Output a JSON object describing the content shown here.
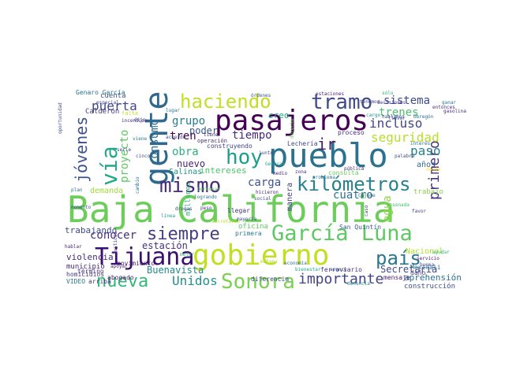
{
  "words": [
    {
      "text": "Baja California",
      "color": "#6ccd5a"
    },
    {
      "text": "pueblo",
      "color": "#2c728e"
    },
    {
      "text": "gobierno",
      "color": "#c2df23"
    },
    {
      "text": "pasajeros",
      "color": "#440154"
    },
    {
      "text": "gente",
      "color": "#31688e"
    },
    {
      "text": "García Luna",
      "color": "#5ec962"
    },
    {
      "text": "Tijuana",
      "color": "#3b0f70"
    },
    {
      "text": "Sonora",
      "color": "#7ad151"
    },
    {
      "text": "kilómetros",
      "color": "#26828e"
    },
    {
      "text": "vía",
      "color": "#22a884"
    },
    {
      "text": "mismo",
      "color": "#472c7a"
    },
    {
      "text": "hoy",
      "color": "#1f9e89"
    },
    {
      "text": "haciendo",
      "color": "#c0df25"
    },
    {
      "text": "tramo",
      "color": "#3e4a89"
    },
    {
      "text": "país",
      "color": "#2a788e"
    },
    {
      "text": "siempre",
      "color": "#433e85"
    },
    {
      "text": "jóvenes",
      "color": "#3b528b"
    },
    {
      "text": "nueva",
      "color": "#35b779"
    },
    {
      "text": "importante",
      "color": "#414487"
    },
    {
      "text": "primero",
      "color": "#46337e"
    },
    {
      "text": "Unidos",
      "color": "#21918c"
    },
    {
      "text": "incluso",
      "color": "#404688"
    },
    {
      "text": "seguridad",
      "color": "#b8de29"
    },
    {
      "text": "sistema",
      "color": "#3e4989"
    },
    {
      "text": "trenes",
      "color": "#4ac16d"
    },
    {
      "text": "paso",
      "color": "#26828e"
    },
    {
      "text": "puerta",
      "color": "#3f4788"
    },
    {
      "text": "consumo",
      "color": "#2e6e8e"
    },
    {
      "text": "tiempo",
      "color": "#482878"
    },
    {
      "text": "grupo",
      "color": "#287c8e"
    },
    {
      "text": "tren",
      "color": "#440154"
    },
    {
      "text": "obra",
      "color": "#2db27d"
    },
    {
      "text": "carga",
      "color": "#3b528b"
    },
    {
      "text": "cuatro",
      "color": "#2c728e"
    },
    {
      "text": "conocer",
      "color": "#46317e"
    },
    {
      "text": "nuevo",
      "color": "#482475"
    },
    {
      "text": "estación",
      "color": "#472f7d"
    },
    {
      "text": "Buenavista",
      "color": "#23898e"
    },
    {
      "text": "Secretaría",
      "color": "#3e4a89"
    },
    {
      "text": "ir",
      "color": "#481a6c"
    },
    {
      "text": "agua",
      "color": "#8fd744"
    },
    {
      "text": "años",
      "color": "#31688e"
    },
    {
      "text": "proyecto",
      "color": "#5ec962"
    },
    {
      "text": "trabajando",
      "color": "#3d4d8a"
    },
    {
      "text": "violencia",
      "color": "#472d7b"
    },
    {
      "text": "municipio",
      "color": "#472a7a"
    },
    {
      "text": "homicidios",
      "color": "#433d84"
    },
    {
      "text": "VIDEO",
      "color": "#2a788e"
    },
    {
      "text": "demanda",
      "color": "#a0da39"
    },
    {
      "text": "poder",
      "color": "#39568c"
    },
    {
      "text": "creo",
      "color": "#22a785"
    },
    {
      "text": "intereses",
      "color": "#4ec36b"
    },
    {
      "text": "Salinas",
      "color": "#1f948c"
    },
    {
      "text": "aprehensión",
      "color": "#2e6f8e"
    },
    {
      "text": "construcción",
      "color": "#3c508b"
    },
    {
      "text": "Nacional",
      "color": "#addc30"
    },
    {
      "text": "cuenta",
      "color": "#3b528b"
    },
    {
      "text": "Genaro García",
      "color": "#2c718e"
    },
    {
      "text": "Calderón",
      "color": "#433e85"
    },
    {
      "text": "construyendo",
      "color": "#414287"
    },
    {
      "text": "operación",
      "color": "#472c7a"
    },
    {
      "text": "Lechería",
      "color": "#3f4889"
    },
    {
      "text": "millones",
      "color": "#35b779"
    },
    {
      "text": "ferroviario",
      "color": "#453581"
    },
    {
      "text": "oficina",
      "color": "#5ec962"
    },
    {
      "text": "trabajo",
      "color": "#89d548"
    },
    {
      "text": "San Quintín",
      "color": "#38598c"
    },
    {
      "text": "Mexicali",
      "color": "#2c728e"
    },
    {
      "text": "mensaje",
      "color": "#481f70"
    },
    {
      "text": "daño",
      "color": "#443983"
    },
    {
      "text": "manera",
      "color": "#424186"
    },
    {
      "text": "diferencia",
      "color": "#3f4889"
    },
    {
      "text": "proceso",
      "color": "#46307e"
    },
    {
      "text": "abogado",
      "color": "#481b6d"
    },
    {
      "text": "movimiento",
      "color": "#482173"
    },
    {
      "text": "término",
      "color": "#472d7b"
    },
    {
      "text": "arriba",
      "color": "#443a83"
    },
    {
      "text": "llegar",
      "color": "#46327e"
    },
    {
      "text": "consulta",
      "color": "#6ece58"
    },
    {
      "text": "primera",
      "color": "#2a788e"
    },
    {
      "text": "momento",
      "color": "#39568c"
    },
    {
      "text": "falta",
      "color": "#bddf26"
    },
    {
      "text": "incendios",
      "color": "#472c7a"
    },
    {
      "text": "órdenes",
      "color": "#3b528b"
    },
    {
      "text": "General",
      "color": "#20a486"
    },
    {
      "text": "medio",
      "color": "#46327e"
    },
    {
      "text": "línea",
      "color": "#1f9e89"
    },
    {
      "text": "mayoría",
      "color": "#3d4e8a"
    },
    {
      "text": "peso",
      "color": "#443983"
    },
    {
      "text": "economía",
      "color": "#2e6e8e"
    },
    {
      "text": "bienestar",
      "color": "#22a884"
    },
    {
      "text": "apoyar",
      "color": "#482576"
    },
    {
      "text": "dijo",
      "color": "#3f4788"
    },
    {
      "text": "serie",
      "color": "#414487"
    },
    {
      "text": "cinco",
      "color": "#3e4a89"
    },
    {
      "text": "viene",
      "color": "#2a788e"
    },
    {
      "text": "drogas",
      "color": "#404588"
    },
    {
      "text": "acuerdo",
      "color": "#3f4889"
    },
    {
      "text": "social",
      "color": "#39568c"
    },
    {
      "text": "hicieron",
      "color": "#472c7a"
    },
    {
      "text": "avance",
      "color": "#3b528b"
    },
    {
      "text": "estaciones",
      "color": "#481f70"
    },
    {
      "text": "decisiones",
      "color": "#453781"
    },
    {
      "text": "sólo",
      "color": "#2db27d"
    },
    {
      "text": "palabra",
      "color": "#3e4989"
    },
    {
      "text": "Cajeme",
      "color": "#31688e"
    },
    {
      "text": "problema",
      "color": "#2a788e"
    },
    {
      "text": "pública",
      "color": "#472a7a"
    },
    {
      "text": "cargo",
      "color": "#1f948c"
    },
    {
      "text": "denuncia",
      "color": "#23898e"
    },
    {
      "text": "servicio",
      "color": "#481769"
    },
    {
      "text": "buena",
      "color": "#3e4989"
    },
    {
      "text": "hablamos",
      "color": "#3f4788"
    },
    {
      "text": "Obregón",
      "color": "#2e6e8e"
    },
    {
      "text": "mejor",
      "color": "#35b779"
    },
    {
      "text": "plan",
      "color": "#2c728e"
    },
    {
      "text": "gasolina",
      "color": "#472c7a"
    },
    {
      "text": "derecho",
      "color": "#6ece58"
    },
    {
      "text": "zona",
      "color": "#46337e"
    },
    {
      "text": "Ensenada",
      "color": "#4ac16d"
    },
    {
      "text": "favor",
      "color": "#433e85"
    },
    {
      "text": "llevar",
      "color": "#3b528b"
    },
    {
      "text": "mañana",
      "color": "#addc30"
    },
    {
      "text": "logrando",
      "color": "#2c728e"
    },
    {
      "text": "tiene",
      "color": "#433e85"
    },
    {
      "text": "lugar",
      "color": "#2a788e"
    },
    {
      "text": "junto",
      "color": "#3f4889"
    },
    {
      "text": "hablar",
      "color": "#481f70"
    },
    {
      "text": "Justicia",
      "color": "#46317e"
    },
    {
      "text": "especial",
      "color": "#404688"
    },
    {
      "text": "personas",
      "color": "#5ec962"
    },
    {
      "text": "secretario",
      "color": "#b8de29"
    },
    {
      "text": "cambio",
      "color": "#2c728e"
    },
    {
      "text": "oportunidad",
      "color": "#3b528b"
    },
    {
      "text": "deuda",
      "color": "#fde725"
    },
    {
      "text": "entonces",
      "color": "#472c7a"
    },
    {
      "text": "interés",
      "color": "#2e6e8e"
    },
    {
      "text": "caso",
      "color": "#433e85"
    },
    {
      "text": "tenemos",
      "color": "#3f4788"
    },
    {
      "text": "ayudar",
      "color": "#35b779"
    },
    {
      "text": "ganar",
      "color": "#2a788e"
    }
  ]
}
